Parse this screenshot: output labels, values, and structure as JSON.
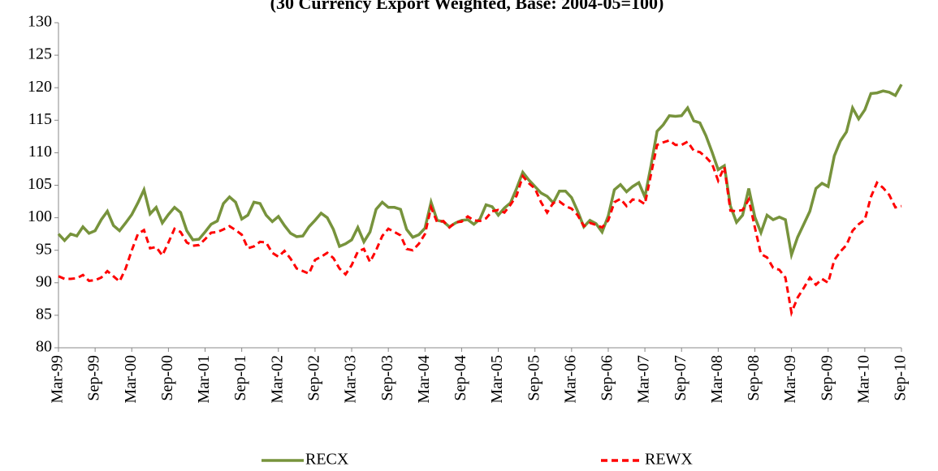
{
  "chart_data": {
    "type": "line",
    "subtitle": "(30 Currency Export Weighted, Base: 2004-05=100)",
    "categories": [
      "Mar-99",
      null,
      null,
      null,
      null,
      null,
      "Sep-99",
      null,
      null,
      null,
      null,
      null,
      "Mar-00",
      null,
      null,
      null,
      null,
      null,
      "Sep-00",
      null,
      null,
      null,
      null,
      null,
      "Mar-01",
      null,
      null,
      null,
      null,
      null,
      "Sep-01",
      null,
      null,
      null,
      null,
      null,
      "Mar-02",
      null,
      null,
      null,
      null,
      null,
      "Sep-02",
      null,
      null,
      null,
      null,
      null,
      "Mar-03",
      null,
      null,
      null,
      null,
      null,
      "Sep-03",
      null,
      null,
      null,
      null,
      null,
      "Mar-04",
      null,
      null,
      null,
      null,
      null,
      "Sep-04",
      null,
      null,
      null,
      null,
      null,
      "Mar-05",
      null,
      null,
      null,
      null,
      null,
      "Sep-05",
      null,
      null,
      null,
      null,
      null,
      "Mar-06",
      null,
      null,
      null,
      null,
      null,
      "Sep-06",
      null,
      null,
      null,
      null,
      null,
      "Mar-07",
      null,
      null,
      null,
      null,
      null,
      "Sep-07",
      null,
      null,
      null,
      null,
      null,
      "Mar-08",
      null,
      null,
      null,
      null,
      null,
      "Sep-08",
      null,
      null,
      null,
      null,
      null,
      "Mar-09",
      null,
      null,
      null,
      null,
      null,
      "Sep-09",
      null,
      null,
      null,
      null,
      null,
      "Mar-10",
      null,
      null,
      null,
      null,
      null,
      "Sep-10"
    ],
    "series": [
      {
        "name": "RECX",
        "color": "#77933c",
        "dashed": false,
        "values": [
          97.5,
          96.5,
          97.5,
          97.2,
          98.6,
          97.6,
          98,
          99.7,
          101,
          98.8,
          98,
          99.2,
          100.5,
          102.3,
          104.3,
          100.6,
          101.6,
          99.2,
          100.5,
          101.6,
          100.8,
          98,
          96.6,
          96.7,
          97.8,
          99,
          99.5,
          102.2,
          103.2,
          102.4,
          99.8,
          100.4,
          102.4,
          102.2,
          100.4,
          99.4,
          100.2,
          98.8,
          97.6,
          97.1,
          97.2,
          98.6,
          99.6,
          100.7,
          100,
          98.2,
          95.6,
          96,
          96.6,
          98.5,
          96.3,
          97.8,
          101.3,
          102.4,
          101.6,
          101.6,
          101.3,
          98.2,
          97,
          97.4,
          98.4,
          102.4,
          99.6,
          99.4,
          98.6,
          99.2,
          99.6,
          99.7,
          99,
          99.8,
          102,
          101.7,
          100.4,
          101.5,
          102.3,
          104.5,
          107,
          105.8,
          104.8,
          103.8,
          103.3,
          102.3,
          104.1,
          104.1,
          103.1,
          101,
          98.6,
          99.6,
          99.1,
          97.8,
          100.3,
          104.3,
          105.1,
          104,
          104.8,
          105.4,
          103.2,
          108,
          113.3,
          114.3,
          115.7,
          115.6,
          115.7,
          116.9,
          114.9,
          114.6,
          112.6,
          110.1,
          107.4,
          108,
          101.8,
          99.3,
          100.4,
          104.5,
          100.1,
          97.7,
          100.4,
          99.7,
          100.1,
          99.7,
          94.3,
          97,
          99,
          101,
          104.5,
          105.3,
          104.8,
          109.5,
          111.8,
          113.2,
          116.9,
          115.2,
          116.6,
          119.1,
          119.2,
          119.5,
          119.3,
          118.8,
          120.5
        ]
      },
      {
        "name": "REWX",
        "color": "#ff0000",
        "dashed": true,
        "values": [
          91,
          90.6,
          90.6,
          90.7,
          91.2,
          90.3,
          90.4,
          90.8,
          91.8,
          91,
          90.2,
          92.2,
          95,
          97.5,
          98.1,
          95.3,
          95.5,
          94.2,
          96.2,
          98.3,
          97.8,
          96.2,
          95.7,
          95.8,
          96.7,
          97.7,
          97.8,
          98.2,
          98.7,
          98.1,
          97.4,
          95.3,
          95.6,
          96.3,
          96.2,
          94.6,
          94,
          94.9,
          93.7,
          92.2,
          91.8,
          91.4,
          93.5,
          94,
          94.6,
          93.8,
          92.2,
          91.3,
          92.7,
          94.8,
          95.2,
          93.2,
          95,
          97.2,
          98.3,
          97.8,
          97.3,
          95.2,
          95,
          96,
          97.5,
          101.6,
          99.3,
          99.5,
          98.5,
          99.3,
          99.4,
          100.2,
          99.6,
          99.5,
          99.9,
          101,
          101.2,
          100.8,
          102,
          103.4,
          106.4,
          105.3,
          104.5,
          102.4,
          100.8,
          102.3,
          102.5,
          101.8,
          101.4,
          100.4,
          98.7,
          99.2,
          98.9,
          98.5,
          99.6,
          102.4,
          102.9,
          101.8,
          102.8,
          102.7,
          102.1,
          106.7,
          111.2,
          111.6,
          111.9,
          111.2,
          111.2,
          111.7,
          110.3,
          110.1,
          109.3,
          108.3,
          105.7,
          107.8,
          101.1,
          101,
          101.2,
          102.8,
          98.5,
          94.4,
          93.9,
          92.3,
          92,
          90.8,
          85.4,
          87.7,
          89.2,
          90.8,
          89.7,
          90.6,
          90,
          93.5,
          94.8,
          95.8,
          98,
          99,
          99.7,
          103.2,
          105.4,
          104.6,
          103.5,
          101.6,
          101.8
        ]
      }
    ],
    "ylim": [
      80,
      130
    ],
    "yticks": [
      80,
      85,
      90,
      95,
      100,
      105,
      110,
      115,
      120,
      125,
      130
    ],
    "grid": false,
    "legend": "bottom"
  }
}
